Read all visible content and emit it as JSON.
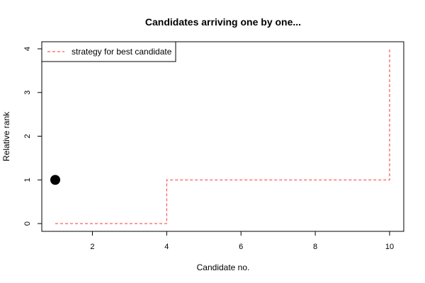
{
  "chart_data": {
    "type": "line",
    "title": "Candidates arriving one by one...",
    "xlabel": "Candidate no.",
    "ylabel": "Relative rank",
    "xlim": [
      1,
      10
    ],
    "ylim": [
      0,
      4
    ],
    "x_ticks": [
      2,
      4,
      6,
      8,
      10
    ],
    "y_ticks": [
      0,
      1,
      2,
      3,
      4
    ],
    "series": [
      {
        "name": "strategy for best candidate",
        "style": "dashed-step",
        "color": "#ff3333",
        "points": [
          [
            1,
            0
          ],
          [
            4,
            0
          ],
          [
            4,
            1
          ],
          [
            10,
            1
          ],
          [
            10,
            4
          ]
        ]
      }
    ],
    "points": [
      {
        "x": 1,
        "y": 1,
        "color": "#000000"
      }
    ],
    "legend": {
      "position": "top-left"
    },
    "grid": false
  }
}
